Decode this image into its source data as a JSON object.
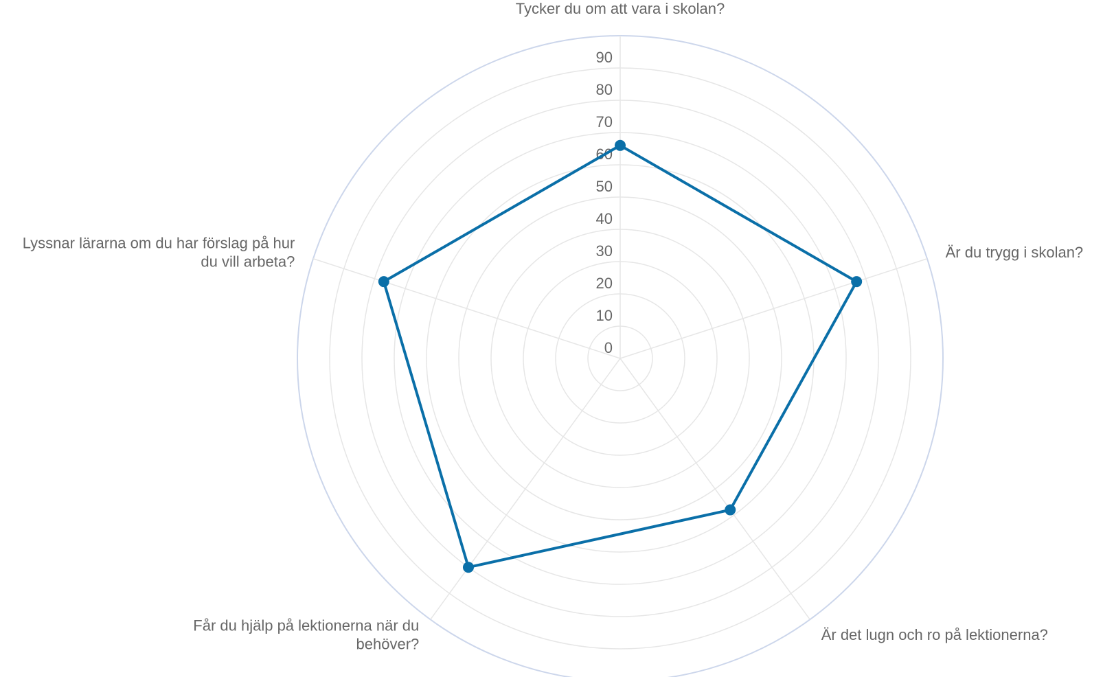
{
  "chart_data": {
    "type": "radar",
    "categories": [
      [
        "Tycker du om att vara i skolan?"
      ],
      [
        "Är du trygg i skolan?"
      ],
      [
        "Är det lugn och ro på lektionerna?"
      ],
      [
        "Får du hjälp på lektionerna när du",
        "behöver?"
      ],
      [
        "Lyssnar lärarna om du har förslag på hur",
        "du vill arbeta?"
      ]
    ],
    "series": [
      {
        "values": [
          66,
          77,
          58,
          80,
          77
        ],
        "color": "#0a6fa8"
      }
    ],
    "r_axis": {
      "min": 0,
      "max": 100,
      "ticks": [
        "0",
        "10",
        "20",
        "30",
        "40",
        "50",
        "60",
        "70",
        "80",
        "90"
      ],
      "grid_step": 10
    },
    "grid": true,
    "legend": false
  }
}
